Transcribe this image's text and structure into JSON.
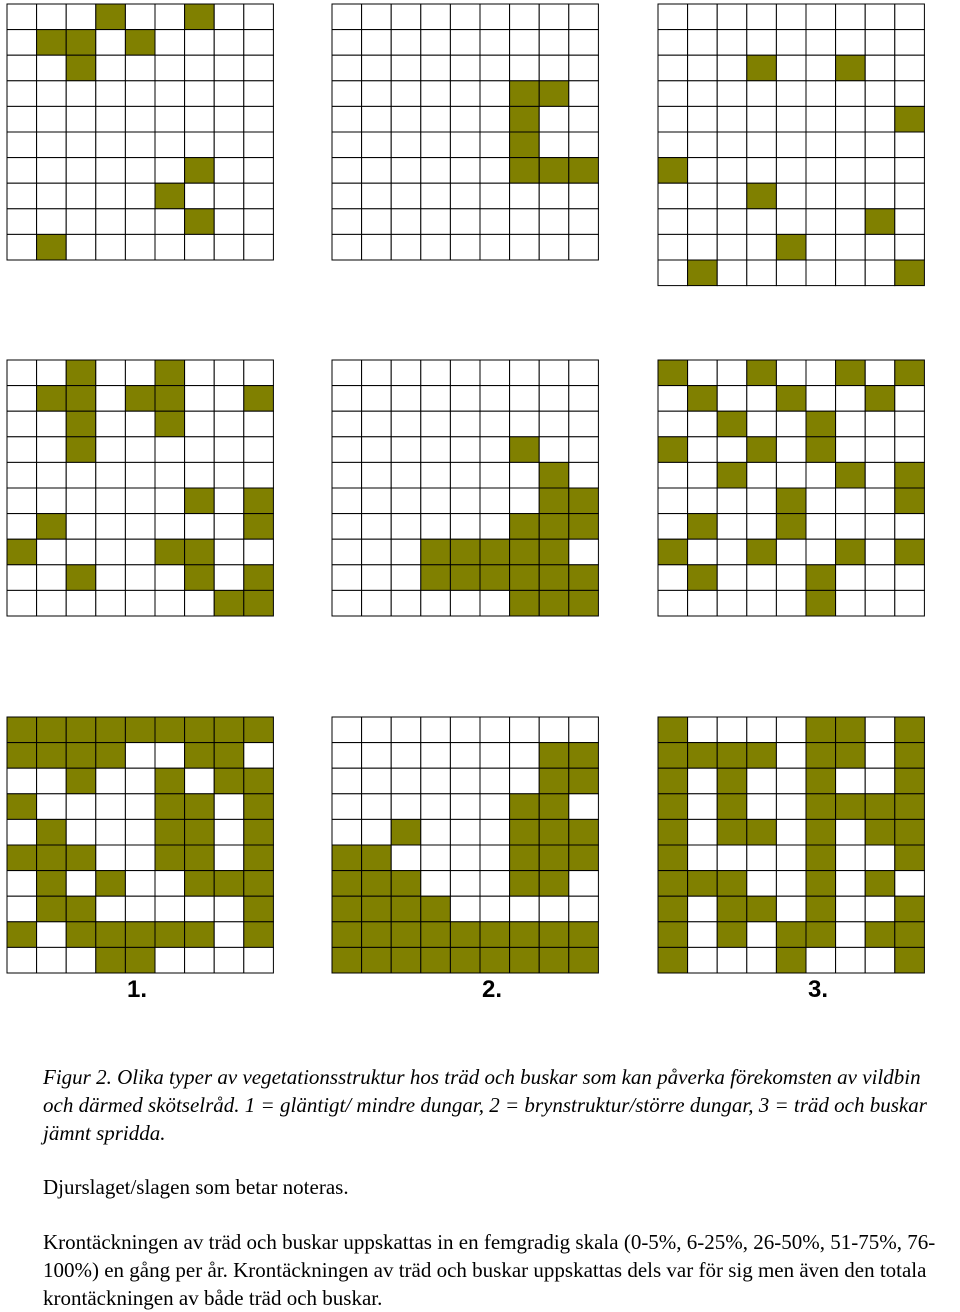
{
  "colors": {
    "fill": "#808000",
    "empty": "#ffffff",
    "line": "#000000"
  },
  "column_labels": [
    "1.",
    "2.",
    "3."
  ],
  "grids": [
    {
      "rows": [
        "000100100",
        "011010000",
        "001000000",
        "000000000",
        "000000000",
        "000000000",
        "000000100",
        "000001000",
        "000000100",
        "010000000"
      ]
    },
    {
      "rows": [
        "000000000",
        "000000000",
        "000000000",
        "000000110",
        "000000100",
        "000000100",
        "000000111",
        "000000000",
        "000000000",
        "000000000"
      ]
    },
    {
      "rows": [
        "000000000",
        "000000000",
        "000100100",
        "000000000",
        "000000001",
        "000000000",
        "100000000",
        "000100000",
        "000000010",
        "000010000",
        "010000001"
      ]
    },
    {
      "rows": [
        "001001000",
        "011011001",
        "001001000",
        "001000000",
        "000000000",
        "000000101",
        "010000001",
        "100001100",
        "001000101",
        "000000011"
      ]
    },
    {
      "rows": [
        "000000000",
        "000000000",
        "000000000",
        "000000100",
        "000000010",
        "000000011",
        "000000111",
        "000111110",
        "000111111",
        "000000111"
      ]
    },
    {
      "rows": [
        "100100101",
        "010010010",
        "001001000",
        "100101000",
        "001000101",
        "000010001",
        "010010000",
        "100100101",
        "010001000",
        "000001000"
      ]
    },
    {
      "rows": [
        "111111111",
        "111100110",
        "001001011",
        "100001101",
        "010001101",
        "111001101",
        "010100111",
        "011000001",
        "101111101",
        "000110000"
      ]
    },
    {
      "rows": [
        "000000000",
        "000000011",
        "000000011",
        "000000110",
        "001000111",
        "110000111",
        "111000110",
        "111100000",
        "111111111",
        "111111111"
      ]
    },
    {
      "rows": [
        "100001101",
        "111101101",
        "101001001",
        "101001111",
        "101101011",
        "100001001",
        "111001010",
        "101101001",
        "101011011",
        "100010001"
      ]
    }
  ],
  "caption": {
    "figure_text": "Figur 2. Olika typer av vegetationsstruktur hos träd och buskar som kan påverka förekomsten av vildbin och därmed skötselråd. 1 = gläntigt/ mindre dungar, 2 = brynstruktur/större dungar, 3 = träd och buskar jämnt spridda.",
    "note": "Djurslaget/slagen som betar noteras.",
    "cover_text": "Krontäckningen av träd och buskar uppskattas in en femgradig skala (0-5%, 6-25%, 26-50%, 51-75%, 76-100%) en gång per år. Krontäckningen av träd och buskar uppskattas dels var för sig men även den totala krontäckningen av både träd och buskar."
  }
}
